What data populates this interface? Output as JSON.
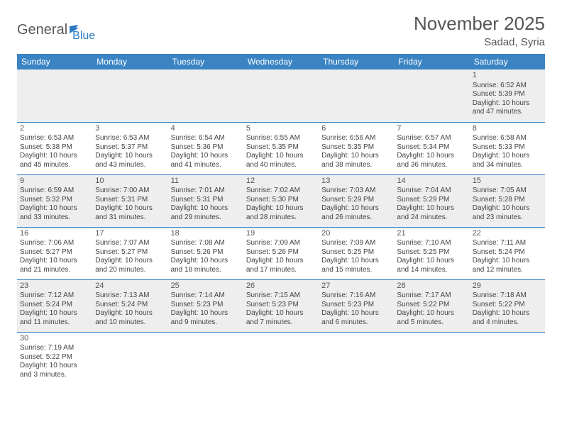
{
  "logo": {
    "part1": "General",
    "part2": "Blue"
  },
  "title": "November 2025",
  "location": "Sadad, Syria",
  "colors": {
    "header_bg": "#3a84c4",
    "header_text": "#ffffff",
    "row_alt_bg": "#eeeeee",
    "row_bg": "#ffffff",
    "divider": "#2d7bc3",
    "text": "#444444",
    "logo_blue": "#2d7bc3",
    "logo_gray": "#5a5a5a"
  },
  "weekdays": [
    "Sunday",
    "Monday",
    "Tuesday",
    "Wednesday",
    "Thursday",
    "Friday",
    "Saturday"
  ],
  "weeks": [
    [
      null,
      null,
      null,
      null,
      null,
      null,
      {
        "n": "1",
        "sr": "6:52 AM",
        "ss": "5:39 PM",
        "dl": "10 hours and 47 minutes."
      }
    ],
    [
      {
        "n": "2",
        "sr": "6:53 AM",
        "ss": "5:38 PM",
        "dl": "10 hours and 45 minutes."
      },
      {
        "n": "3",
        "sr": "6:53 AM",
        "ss": "5:37 PM",
        "dl": "10 hours and 43 minutes."
      },
      {
        "n": "4",
        "sr": "6:54 AM",
        "ss": "5:36 PM",
        "dl": "10 hours and 41 minutes."
      },
      {
        "n": "5",
        "sr": "6:55 AM",
        "ss": "5:35 PM",
        "dl": "10 hours and 40 minutes."
      },
      {
        "n": "6",
        "sr": "6:56 AM",
        "ss": "5:35 PM",
        "dl": "10 hours and 38 minutes."
      },
      {
        "n": "7",
        "sr": "6:57 AM",
        "ss": "5:34 PM",
        "dl": "10 hours and 36 minutes."
      },
      {
        "n": "8",
        "sr": "6:58 AM",
        "ss": "5:33 PM",
        "dl": "10 hours and 34 minutes."
      }
    ],
    [
      {
        "n": "9",
        "sr": "6:59 AM",
        "ss": "5:32 PM",
        "dl": "10 hours and 33 minutes."
      },
      {
        "n": "10",
        "sr": "7:00 AM",
        "ss": "5:31 PM",
        "dl": "10 hours and 31 minutes."
      },
      {
        "n": "11",
        "sr": "7:01 AM",
        "ss": "5:31 PM",
        "dl": "10 hours and 29 minutes."
      },
      {
        "n": "12",
        "sr": "7:02 AM",
        "ss": "5:30 PM",
        "dl": "10 hours and 28 minutes."
      },
      {
        "n": "13",
        "sr": "7:03 AM",
        "ss": "5:29 PM",
        "dl": "10 hours and 26 minutes."
      },
      {
        "n": "14",
        "sr": "7:04 AM",
        "ss": "5:29 PM",
        "dl": "10 hours and 24 minutes."
      },
      {
        "n": "15",
        "sr": "7:05 AM",
        "ss": "5:28 PM",
        "dl": "10 hours and 23 minutes."
      }
    ],
    [
      {
        "n": "16",
        "sr": "7:06 AM",
        "ss": "5:27 PM",
        "dl": "10 hours and 21 minutes."
      },
      {
        "n": "17",
        "sr": "7:07 AM",
        "ss": "5:27 PM",
        "dl": "10 hours and 20 minutes."
      },
      {
        "n": "18",
        "sr": "7:08 AM",
        "ss": "5:26 PM",
        "dl": "10 hours and 18 minutes."
      },
      {
        "n": "19",
        "sr": "7:09 AM",
        "ss": "5:26 PM",
        "dl": "10 hours and 17 minutes."
      },
      {
        "n": "20",
        "sr": "7:09 AM",
        "ss": "5:25 PM",
        "dl": "10 hours and 15 minutes."
      },
      {
        "n": "21",
        "sr": "7:10 AM",
        "ss": "5:25 PM",
        "dl": "10 hours and 14 minutes."
      },
      {
        "n": "22",
        "sr": "7:11 AM",
        "ss": "5:24 PM",
        "dl": "10 hours and 12 minutes."
      }
    ],
    [
      {
        "n": "23",
        "sr": "7:12 AM",
        "ss": "5:24 PM",
        "dl": "10 hours and 11 minutes."
      },
      {
        "n": "24",
        "sr": "7:13 AM",
        "ss": "5:24 PM",
        "dl": "10 hours and 10 minutes."
      },
      {
        "n": "25",
        "sr": "7:14 AM",
        "ss": "5:23 PM",
        "dl": "10 hours and 9 minutes."
      },
      {
        "n": "26",
        "sr": "7:15 AM",
        "ss": "5:23 PM",
        "dl": "10 hours and 7 minutes."
      },
      {
        "n": "27",
        "sr": "7:16 AM",
        "ss": "5:23 PM",
        "dl": "10 hours and 6 minutes."
      },
      {
        "n": "28",
        "sr": "7:17 AM",
        "ss": "5:22 PM",
        "dl": "10 hours and 5 minutes."
      },
      {
        "n": "29",
        "sr": "7:18 AM",
        "ss": "5:22 PM",
        "dl": "10 hours and 4 minutes."
      }
    ],
    [
      {
        "n": "30",
        "sr": "7:19 AM",
        "ss": "5:22 PM",
        "dl": "10 hours and 3 minutes."
      },
      null,
      null,
      null,
      null,
      null,
      null
    ]
  ],
  "labels": {
    "sunrise": "Sunrise: ",
    "sunset": "Sunset: ",
    "daylight": "Daylight: "
  }
}
